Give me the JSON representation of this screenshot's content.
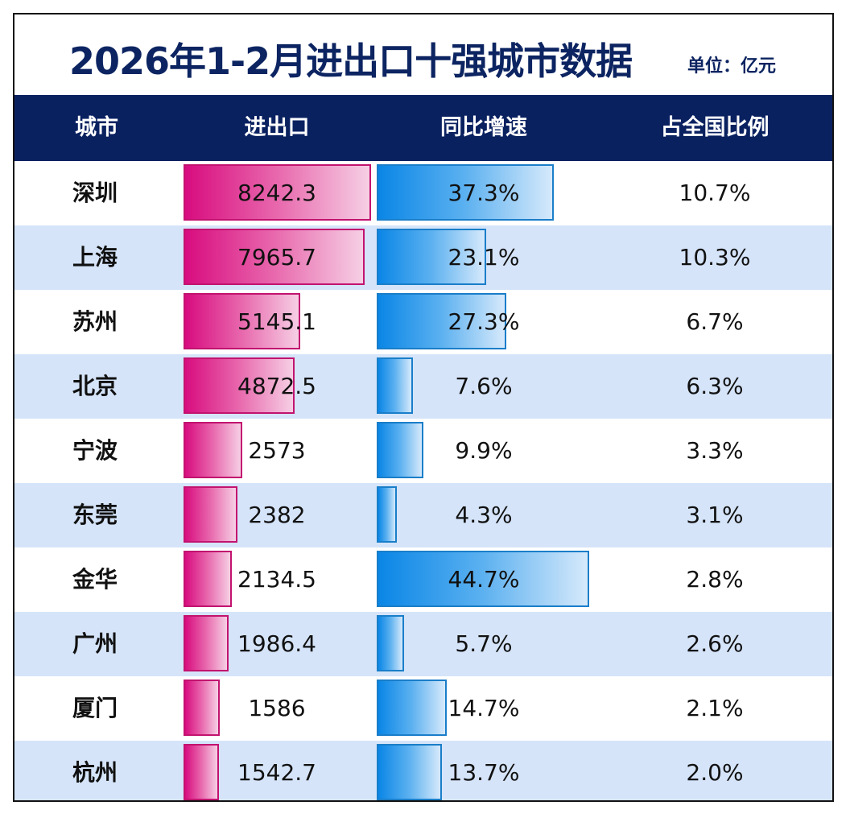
{
  "title": "2026年1-2月进出口十强城市数据",
  "unit": "单位：亿元",
  "chart_data": {
    "type": "table",
    "columns": [
      "城市",
      "进出口",
      "同比增速",
      "占全国比例"
    ],
    "rows": [
      {
        "city": "深圳",
        "trade": "8242.3",
        "growth": "37.3%",
        "share": "10.7%"
      },
      {
        "city": "上海",
        "trade": "7965.7",
        "growth": "23.1%",
        "share": "10.3%"
      },
      {
        "city": "苏州",
        "trade": "5145.1",
        "growth": "27.3%",
        "share": "6.7%"
      },
      {
        "city": "北京",
        "trade": "4872.5",
        "growth": "7.6%",
        "share": "6.3%"
      },
      {
        "city": "宁波",
        "trade": "2573",
        "growth": "9.9%",
        "share": "3.3%"
      },
      {
        "city": "东莞",
        "trade": "2382",
        "growth": "4.3%",
        "share": "3.1%"
      },
      {
        "city": "金华",
        "trade": "2134.5",
        "growth": "44.7%",
        "share": "2.8%"
      },
      {
        "city": "广州",
        "trade": "1986.4",
        "growth": "5.7%",
        "share": "2.6%"
      },
      {
        "city": "厦门",
        "trade": "1586",
        "growth": "14.7%",
        "share": "2.1%"
      },
      {
        "city": "杭州",
        "trade": "1542.7",
        "growth": "13.7%",
        "share": "2.0%"
      }
    ],
    "colors": {
      "header": "#0a2160",
      "trade_bar": "#d80c7f",
      "growth_bar": "#0a86e6",
      "alt_row": "#d5e4f9"
    }
  }
}
